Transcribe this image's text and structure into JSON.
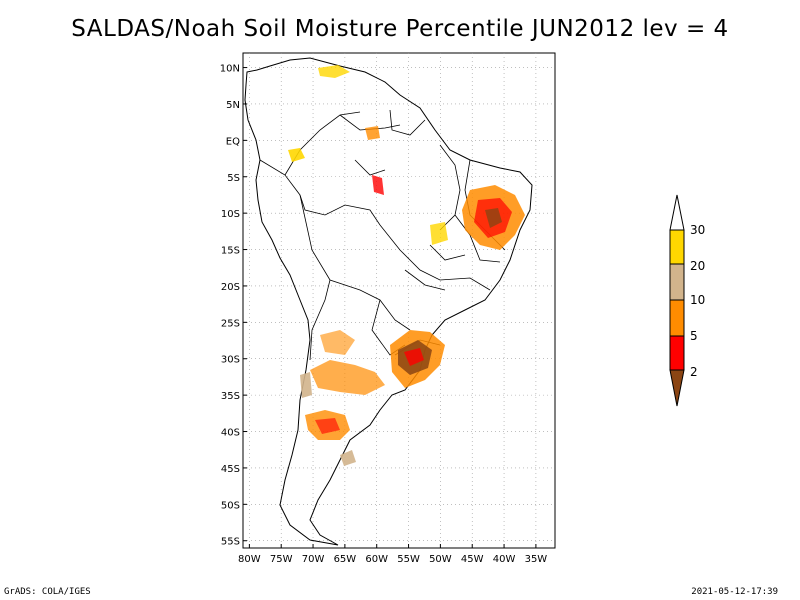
{
  "title": "SALDAS/Noah Soil Moisture Percentile JUN2012 lev = 4",
  "footer": {
    "left": "GrADS: COLA/IGES",
    "right": "2021-05-12-17:39"
  },
  "map": {
    "lon_range": [
      -81,
      -32
    ],
    "lat_range": [
      -56,
      12
    ],
    "lat_ticks": [
      "10N",
      "5N",
      "EQ",
      "5S",
      "10S",
      "15S",
      "20S",
      "25S",
      "30S",
      "35S",
      "40S",
      "45S",
      "50S",
      "55S"
    ],
    "lat_values": [
      10,
      5,
      0,
      -5,
      -10,
      -15,
      -20,
      -25,
      -30,
      -35,
      -40,
      -45,
      -50,
      -55
    ],
    "lon_ticks": [
      "80W",
      "75W",
      "70W",
      "65W",
      "60W",
      "55W",
      "50W",
      "45W",
      "40W",
      "35W"
    ],
    "lon_values": [
      -80,
      -75,
      -70,
      -65,
      -60,
      -55,
      -50,
      -45,
      -40,
      -35
    ],
    "grid": "dotted"
  },
  "colorbar": {
    "labels": [
      "2",
      "5",
      "10",
      "20",
      "30"
    ],
    "colors": [
      "#8b4513",
      "#ff0000",
      "#ff8c00",
      "#d2b48c",
      "#ffd700",
      "#ffffff"
    ]
  }
}
